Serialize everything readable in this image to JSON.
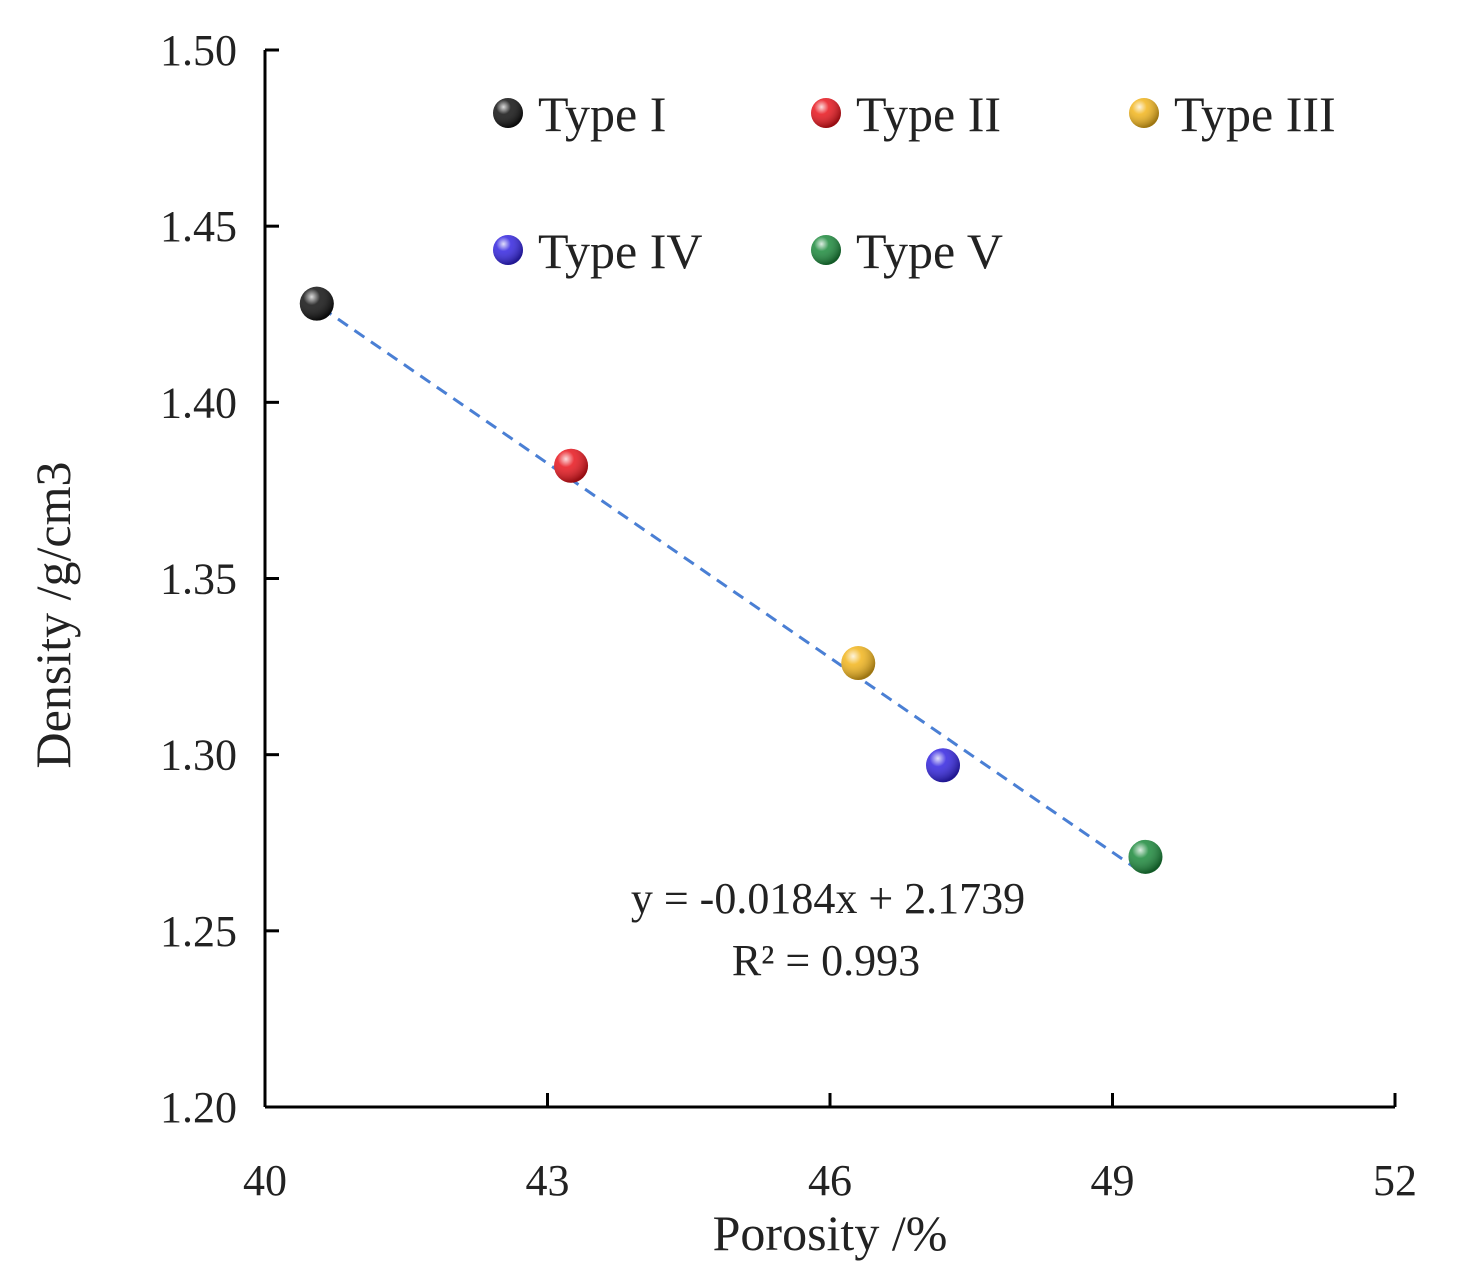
{
  "chart_data": {
    "type": "scatter",
    "title": "",
    "xlabel": "Porosity /%",
    "ylabel": "Density /g/cm3",
    "xlim": [
      40,
      52
    ],
    "ylim": [
      1.2,
      1.5
    ],
    "xticks": [
      "40",
      "43",
      "46",
      "49",
      "52"
    ],
    "yticks": [
      "1.20",
      "1.25",
      "1.30",
      "1.35",
      "1.40",
      "1.45",
      "1.50"
    ],
    "grid": false,
    "legend_position": "top",
    "series": [
      {
        "name": "Type I",
        "color": "#111111",
        "points": [
          {
            "x": 40.55,
            "y": 1.428
          }
        ]
      },
      {
        "name": "Type II",
        "color": "#e8141c",
        "points": [
          {
            "x": 43.25,
            "y": 1.382
          }
        ]
      },
      {
        "name": "Type III",
        "color": "#f2b51c",
        "points": [
          {
            "x": 46.3,
            "y": 1.326
          }
        ]
      },
      {
        "name": "Type IV",
        "color": "#3324e0",
        "points": [
          {
            "x": 47.2,
            "y": 1.297
          }
        ]
      },
      {
        "name": "Type V",
        "color": "#1c8a3c",
        "points": [
          {
            "x": 49.35,
            "y": 1.271
          }
        ]
      }
    ],
    "trendline": {
      "slope": -0.0184,
      "intercept": 2.1739,
      "x_range": [
        40.6,
        49.3
      ],
      "color": "#4a7fd4",
      "style": "dashed",
      "equation": "y = -0.0184x  + 2.1739",
      "r_squared": "R² = 0.993"
    }
  }
}
